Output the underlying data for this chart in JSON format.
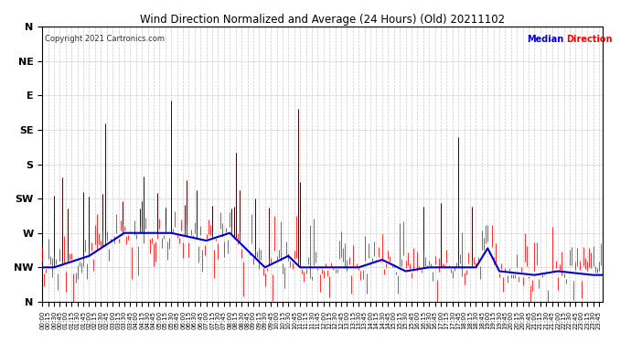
{
  "title": "Wind Direction Normalized and Average (24 Hours) (Old) 20211102",
  "copyright": "Copyright 2021 Cartronics.com",
  "legend_median": "Median",
  "legend_direction": "Direction",
  "background_color": "#ffffff",
  "plot_bg_color": "#ffffff",
  "grid_color": "#bbbbbb",
  "ytick_labels": [
    "N",
    "NW",
    "W",
    "SW",
    "S",
    "SE",
    "E",
    "NE",
    "N"
  ],
  "ytick_values": [
    360,
    315,
    270,
    225,
    180,
    135,
    90,
    45,
    0
  ],
  "ylim": [
    0,
    360
  ],
  "num_points": 288,
  "median_color": "#0000cc",
  "direction_color": "#ff0000",
  "spike_color": "#000000"
}
